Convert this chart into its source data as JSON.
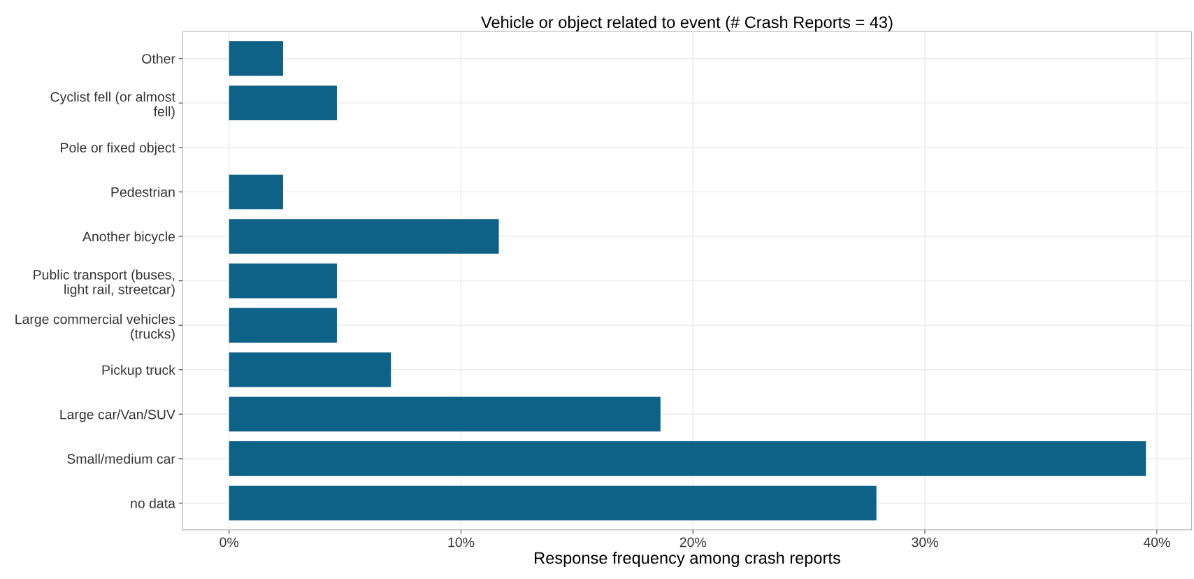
{
  "chart_data": {
    "type": "bar",
    "orientation": "horizontal",
    "title": "Vehicle or object related to event (# Crash Reports = 43)",
    "xlabel": "Response frequency among crash reports",
    "categories": [
      "Other",
      "Cyclist fell (or almost\nfell)",
      "Pole or fixed object",
      "Pedestrian",
      "Another bicycle",
      "Public transport (buses,\nlight rail, streetcar)",
      "Large commercial vehicles\n(trucks)",
      "Pickup truck",
      "Large car/Van/SUV",
      "Small/medium car",
      "no data"
    ],
    "values": [
      2.33,
      4.65,
      0,
      2.33,
      11.63,
      4.65,
      4.65,
      6.98,
      18.6,
      39.53,
      27.91
    ],
    "color": "#0e6187",
    "xlim": [
      -2,
      41.5
    ],
    "xticks": [
      {
        "value": 0,
        "label": "0%"
      },
      {
        "value": 10,
        "label": "10%"
      },
      {
        "value": 20,
        "label": "20%"
      },
      {
        "value": 30,
        "label": "30%"
      },
      {
        "value": 40,
        "label": "40%"
      }
    ],
    "grid": true
  }
}
